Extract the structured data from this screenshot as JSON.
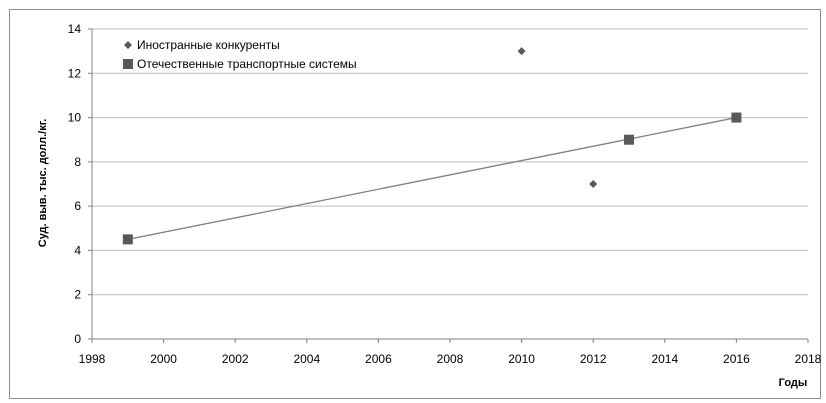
{
  "chart_data": {
    "type": "scatter",
    "title": "",
    "xlabel": "Годы",
    "ylabel": "Суд. выв. тыс. долл./кг.",
    "xlim": [
      1998,
      2018
    ],
    "ylim": [
      0,
      14
    ],
    "x_ticks": [
      1998,
      2000,
      2002,
      2004,
      2006,
      2008,
      2010,
      2012,
      2014,
      2016,
      2018
    ],
    "y_ticks": [
      0,
      2,
      4,
      6,
      8,
      10,
      12,
      14
    ],
    "grid": "horizontal",
    "legend_position": "top-left",
    "series": [
      {
        "name": "Иностранные конкуренты",
        "marker": "diamond",
        "color": "#595959",
        "points": [
          {
            "x": 2010,
            "y": 13
          },
          {
            "x": 2012,
            "y": 7
          }
        ]
      },
      {
        "name": "Отечественные транспортные системы",
        "marker": "square",
        "color": "#595959",
        "points": [
          {
            "x": 1999,
            "y": 4.5
          },
          {
            "x": 2013,
            "y": 9
          },
          {
            "x": 2016,
            "y": 10
          }
        ]
      }
    ],
    "trendline": {
      "series": "Отечественные транспортные системы",
      "color": "#7f7f7f",
      "start": {
        "x": 1999,
        "y": 4.5
      },
      "end": {
        "x": 2016,
        "y": 10
      }
    }
  }
}
